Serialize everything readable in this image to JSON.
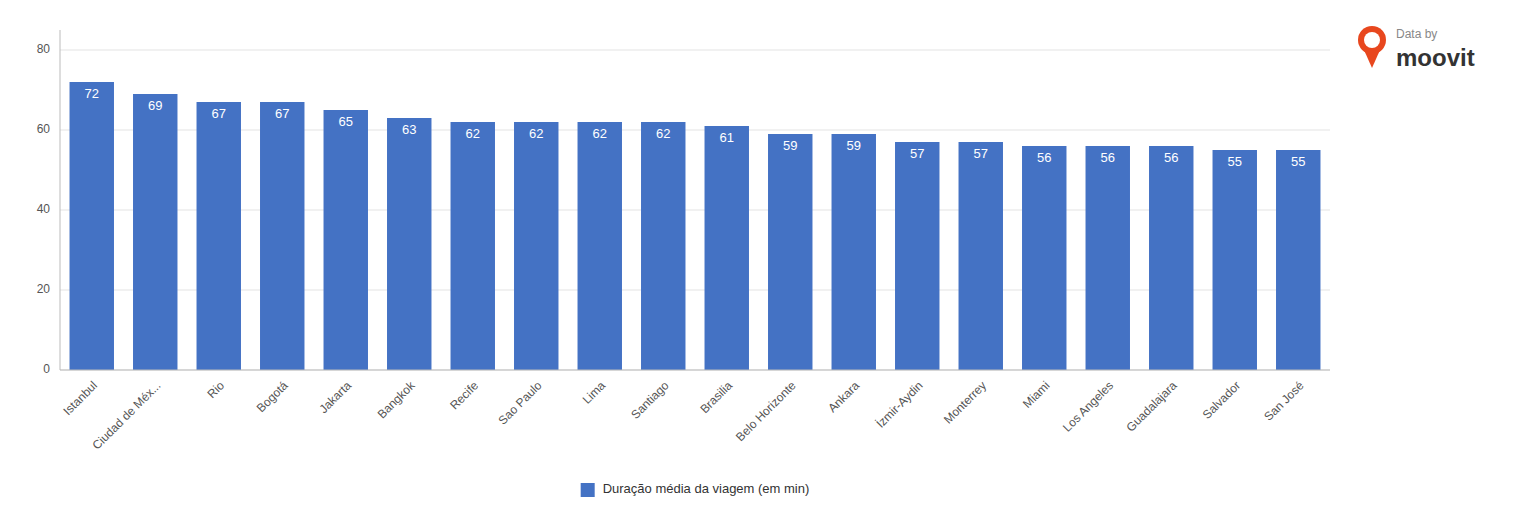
{
  "chart_data": {
    "type": "bar",
    "categories": [
      "Istanbul",
      "Ciudad de Méx...",
      "Rio",
      "Bogotá",
      "Jakarta",
      "Bangkok",
      "Recife",
      "Sao Paulo",
      "Lima",
      "Santiago",
      "Brasilia",
      "Belo Horizonte",
      "Ankara",
      "İzmir-Aydin",
      "Monterrey",
      "Miami",
      "Los Angeles",
      "Guadalajara",
      "Salvador",
      "San José"
    ],
    "series": [
      {
        "name": "Duração média da viagem (em min)",
        "color": "#4472c4",
        "values": [
          72,
          69,
          67,
          67,
          65,
          63,
          62,
          62,
          62,
          62,
          61,
          59,
          59,
          57,
          57,
          56,
          56,
          56,
          55,
          55
        ]
      }
    ],
    "ylim": [
      0,
      85
    ],
    "yticks": [
      0,
      20,
      40,
      60,
      80
    ],
    "grid": true,
    "data_labels": true,
    "legend": "bottom",
    "annotations": [
      "Data by",
      "moovit"
    ]
  }
}
